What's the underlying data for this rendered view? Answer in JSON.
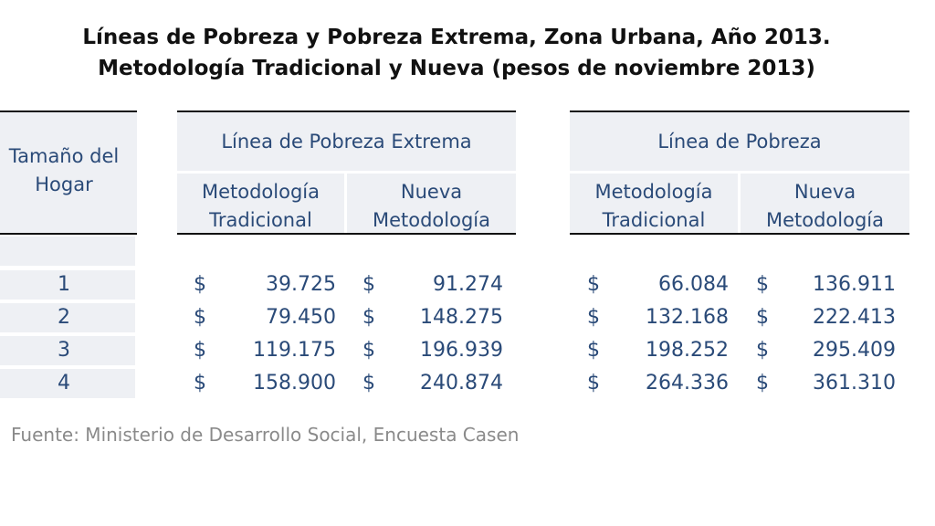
{
  "title": {
    "line1": "Líneas de Pobreza y Pobreza Extrema, Zona Urbana, Año 2013.",
    "line2": "Metodología Tradicional y Nueva (pesos de noviembre 2013)"
  },
  "table": {
    "row_header_line1": "Tamaño del",
    "row_header_line2": "Hogar",
    "groups": [
      {
        "label": "Línea de Pobreza Extrema",
        "subcols": [
          {
            "line1": "Metodología",
            "line2": "Tradicional"
          },
          {
            "line1": "Nueva",
            "line2": "Metodología"
          }
        ]
      },
      {
        "label": "Línea de Pobreza",
        "subcols": [
          {
            "line1": "Metodología",
            "line2": "Tradicional"
          },
          {
            "line1": "Nueva",
            "line2": "Metodología"
          }
        ]
      }
    ],
    "currency": "$",
    "rows": [
      {
        "size": "1",
        "values": [
          "39.725",
          "91.274",
          "66.084",
          "136.911"
        ]
      },
      {
        "size": "2",
        "values": [
          "79.450",
          "148.275",
          "132.168",
          "222.413"
        ]
      },
      {
        "size": "3",
        "values": [
          "119.175",
          "196.939",
          "198.252",
          "295.409"
        ]
      },
      {
        "size": "4",
        "values": [
          "158.900",
          "240.874",
          "264.336",
          "361.310"
        ]
      }
    ]
  },
  "source": "Fuente: Ministerio de Desarrollo Social, Encuesta Casen"
}
